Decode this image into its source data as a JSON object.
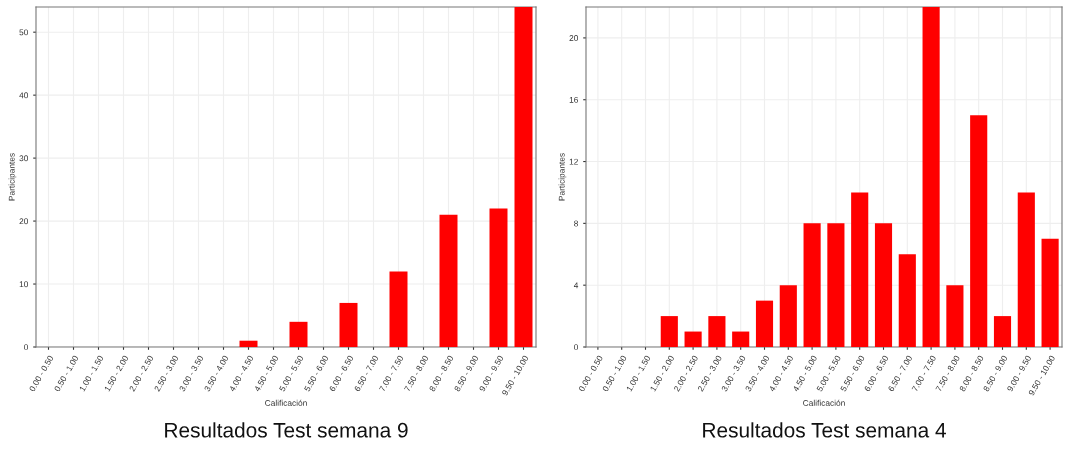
{
  "chart_data": [
    {
      "type": "bar",
      "title": "Resultados Test semana 9",
      "xlabel": "Calificación",
      "ylabel": "Participantes",
      "categories": [
        "0.00 - 0.50",
        "0.50 - 1.00",
        "1.00 - 1.50",
        "1.50 - 2.00",
        "2.00 - 2.50",
        "2.50 - 3.00",
        "3.00 - 3.50",
        "3.50 - 4.00",
        "4.00 - 4.50",
        "4.50 - 5.00",
        "5.00 - 5.50",
        "5.50 - 6.00",
        "6.00 - 6.50",
        "6.50 - 7.00",
        "7.00 - 7.50",
        "7.50 - 8.00",
        "8.00 - 8.50",
        "8.50 - 9.00",
        "9.00 - 9.50",
        "9.50 - 10.00"
      ],
      "values": [
        0,
        0,
        0,
        0,
        0,
        0,
        0,
        0,
        1,
        0,
        4,
        0,
        7,
        0,
        12,
        0,
        21,
        0,
        22,
        54
      ],
      "color": "#ff0000",
      "ylim": [
        0,
        54
      ],
      "yticks": [
        0,
        10,
        20,
        30,
        40,
        50
      ],
      "grid": true
    },
    {
      "type": "bar",
      "title": "Resultados Test semana 4",
      "xlabel": "Calificación",
      "ylabel": "Participantes",
      "categories": [
        "0.00 - 0.50",
        "0.50 - 1.00",
        "1.00 - 1.50",
        "1.50 - 2.00",
        "2.00 - 2.50",
        "2.50 - 3.00",
        "3.00 - 3.50",
        "3.50 - 4.00",
        "4.00 - 4.50",
        "4.50 - 5.00",
        "5.00 - 5.50",
        "5.50 - 6.00",
        "6.00 - 6.50",
        "6.50 - 7.00",
        "7.00 - 7.50",
        "7.50 - 8.00",
        "8.00 - 8.50",
        "8.50 - 9.00",
        "9.00 - 9.50",
        "9.50 - 10.00"
      ],
      "values": [
        0,
        0,
        0,
        2,
        1,
        2,
        1,
        3,
        4,
        8,
        8,
        10,
        8,
        6,
        22,
        4,
        15,
        2,
        10,
        7
      ],
      "color": "#ff0000",
      "ylim": [
        0,
        22
      ],
      "yticks": [
        0,
        4,
        8,
        12,
        16,
        20
      ],
      "grid": true
    }
  ]
}
